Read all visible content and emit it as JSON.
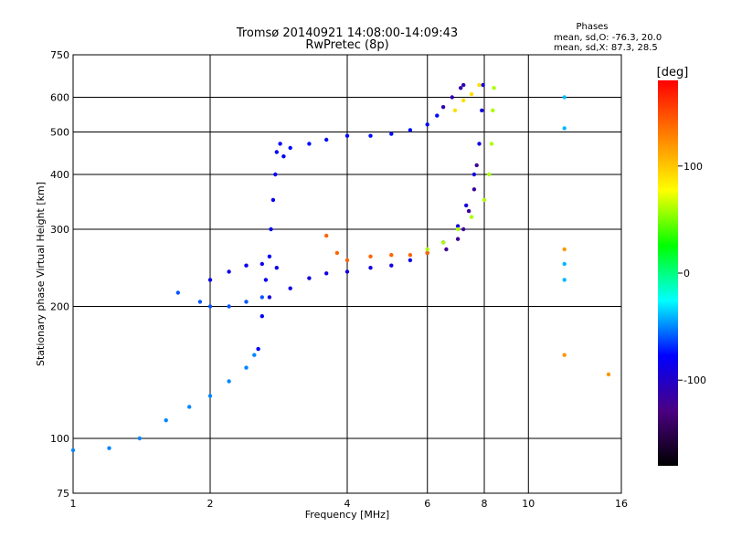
{
  "chart_data": {
    "type": "scatter",
    "title": "Tromsø 20140921 14:08:00-14:09:43",
    "subtitle": "RwPretec (8p)",
    "xlabel": "Frequency [MHz]",
    "ylabel": "Stationary phase Virtual Height [km]",
    "xscale": "log",
    "yscale": "log",
    "xlim": [
      1,
      16
    ],
    "ylim": [
      75,
      750
    ],
    "x_ticks": [
      1,
      2,
      4,
      6,
      8,
      10,
      16
    ],
    "y_ticks": [
      75,
      100,
      200,
      300,
      400,
      500,
      600,
      750
    ],
    "grid": true,
    "phase_box": {
      "title": "Phases",
      "line_o": "mean, sd,O: -76.3, 20.0",
      "line_x": "mean, sd,X:  87.3, 28.5"
    },
    "colorbar": {
      "label": "[deg]",
      "range": [
        -180,
        180
      ],
      "ticks": [
        100,
        0,
        -100
      ],
      "colormap": [
        "#000000",
        "#4b0082",
        "#0000ff",
        "#00ffff",
        "#00ff00",
        "#ffff00",
        "#ff8000",
        "#ff0000"
      ]
    },
    "series": [
      {
        "phase": -80,
        "points": [
          [
            2.55,
            160
          ],
          [
            2.6,
            190
          ],
          [
            2.65,
            230
          ],
          [
            2.7,
            260
          ],
          [
            2.72,
            300
          ],
          [
            2.75,
            350
          ],
          [
            2.78,
            400
          ],
          [
            2.8,
            450
          ],
          [
            2.85,
            470
          ],
          [
            2.9,
            440
          ]
        ]
      },
      {
        "phase": -75,
        "points": [
          [
            3.0,
            460
          ],
          [
            3.3,
            470
          ],
          [
            3.6,
            480
          ],
          [
            4.0,
            490
          ],
          [
            4.5,
            490
          ],
          [
            5.0,
            495
          ],
          [
            5.5,
            505
          ],
          [
            6.0,
            520
          ],
          [
            6.3,
            545
          ]
        ]
      },
      {
        "phase": -110,
        "points": [
          [
            6.5,
            570
          ],
          [
            6.8,
            600
          ],
          [
            7.1,
            630
          ],
          [
            7.2,
            640
          ]
        ]
      },
      {
        "phase": -90,
        "points": [
          [
            2.7,
            210
          ],
          [
            3.0,
            220
          ],
          [
            3.3,
            232
          ],
          [
            3.6,
            238
          ],
          [
            4.0,
            240
          ],
          [
            4.5,
            245
          ],
          [
            5.0,
            248
          ],
          [
            5.5,
            255
          ],
          [
            6.0,
            265
          ],
          [
            6.5,
            280
          ],
          [
            7.0,
            305
          ],
          [
            7.3,
            340
          ],
          [
            7.6,
            400
          ],
          [
            7.8,
            470
          ],
          [
            7.9,
            560
          ],
          [
            7.95,
            640
          ]
        ]
      },
      {
        "phase": -120,
        "points": [
          [
            6.6,
            270
          ],
          [
            7.0,
            285
          ],
          [
            7.2,
            300
          ],
          [
            7.4,
            330
          ],
          [
            7.6,
            370
          ],
          [
            7.7,
            420
          ]
        ]
      },
      {
        "phase": 140,
        "points": [
          [
            3.6,
            290
          ],
          [
            3.8,
            265
          ],
          [
            4.0,
            255
          ],
          [
            4.5,
            260
          ],
          [
            5.0,
            262
          ],
          [
            5.5,
            262
          ],
          [
            6.0,
            265
          ]
        ]
      },
      {
        "phase": 60,
        "points": [
          [
            6.0,
            270
          ],
          [
            6.5,
            280
          ],
          [
            7.0,
            300
          ],
          [
            7.5,
            320
          ],
          [
            8.0,
            350
          ],
          [
            8.2,
            400
          ],
          [
            8.3,
            470
          ],
          [
            8.35,
            560
          ],
          [
            8.4,
            630
          ]
        ]
      },
      {
        "phase": 90,
        "points": [
          [
            6.9,
            560
          ],
          [
            7.2,
            590
          ],
          [
            7.5,
            610
          ],
          [
            7.8,
            640
          ]
        ]
      },
      {
        "phase": -60,
        "points": [
          [
            1.7,
            215
          ],
          [
            1.9,
            205
          ],
          [
            2.0,
            200
          ],
          [
            2.2,
            200
          ],
          [
            2.4,
            205
          ],
          [
            2.6,
            210
          ]
        ]
      },
      {
        "phase": -50,
        "points": [
          [
            1.0,
            94
          ],
          [
            1.2,
            95
          ],
          [
            1.4,
            100
          ],
          [
            1.6,
            110
          ],
          [
            1.8,
            118
          ],
          [
            2.0,
            125
          ],
          [
            2.2,
            135
          ],
          [
            2.4,
            145
          ],
          [
            2.5,
            155
          ]
        ]
      },
      {
        "phase": -85,
        "points": [
          [
            2.0,
            230
          ],
          [
            2.2,
            240
          ],
          [
            2.4,
            248
          ],
          [
            2.6,
            250
          ],
          [
            2.8,
            245
          ]
        ]
      },
      {
        "phase": -40,
        "points": [
          [
            12.0,
            600
          ],
          [
            12.0,
            510
          ],
          [
            12.0,
            250
          ],
          [
            12.0,
            230
          ]
        ]
      },
      {
        "phase": 120,
        "points": [
          [
            12.0,
            270
          ],
          [
            12.0,
            155
          ],
          [
            15.0,
            140
          ]
        ]
      }
    ]
  }
}
